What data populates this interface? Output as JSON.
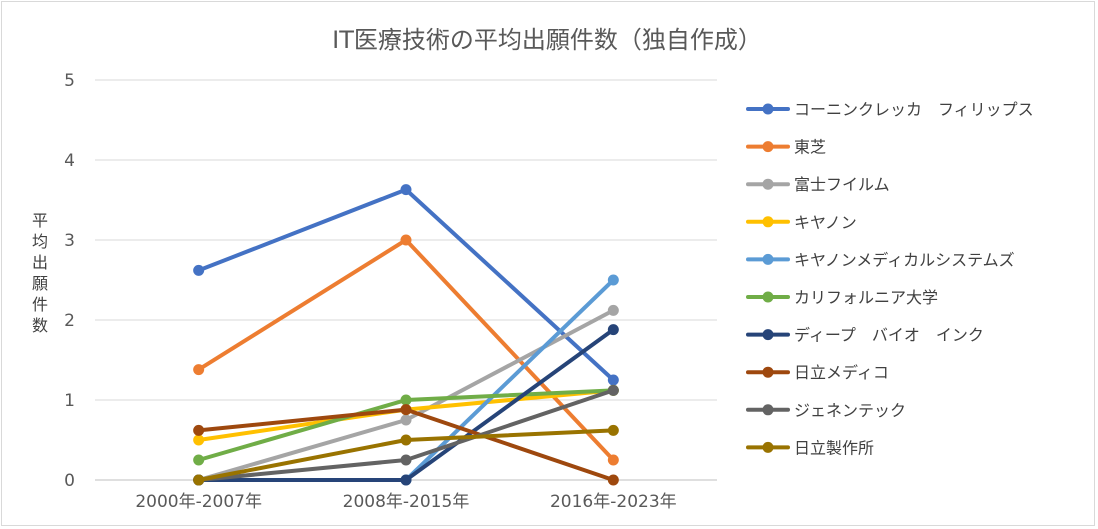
{
  "chart_data": {
    "type": "line",
    "title": "IT医療技術の平均出願件数（独自作成）",
    "ylabel": "平均出願件数",
    "xlabel": "",
    "categories": [
      "2000年-2007年",
      "2008年-2015年",
      "2016年-2023年"
    ],
    "ylim": [
      0,
      5
    ],
    "yticks": [
      0,
      1,
      2,
      3,
      4,
      5
    ],
    "grid": true,
    "legend_position": "right",
    "series": [
      {
        "name": "コーニンクレッカ　フィリップス",
        "color": "#4472C4",
        "values": [
          2.62,
          3.63,
          1.25
        ]
      },
      {
        "name": "東芝",
        "color": "#ED7D31",
        "values": [
          1.38,
          3.0,
          0.25
        ]
      },
      {
        "name": "富士フイルム",
        "color": "#A5A5A5",
        "values": [
          0.0,
          0.75,
          2.12
        ]
      },
      {
        "name": "キヤノン",
        "color": "#FFC000",
        "values": [
          0.5,
          0.88,
          1.12
        ]
      },
      {
        "name": "キヤノンメディカルシステムズ",
        "color": "#5B9BD5",
        "values": [
          0.0,
          0.0,
          2.5
        ]
      },
      {
        "name": "カリフォルニア大学",
        "color": "#70AD47",
        "values": [
          0.25,
          1.0,
          1.12
        ]
      },
      {
        "name": "ディープ　バイオ　インク",
        "color": "#264478",
        "values": [
          0.0,
          0.0,
          1.88
        ]
      },
      {
        "name": "日立メディコ",
        "color": "#9E480E",
        "values": [
          0.62,
          0.88,
          0.0
        ]
      },
      {
        "name": "ジェネンテック",
        "color": "#636363",
        "values": [
          0.0,
          0.25,
          1.12
        ]
      },
      {
        "name": "日立製作所",
        "color": "#997300",
        "values": [
          0.0,
          0.5,
          0.62
        ]
      }
    ]
  }
}
